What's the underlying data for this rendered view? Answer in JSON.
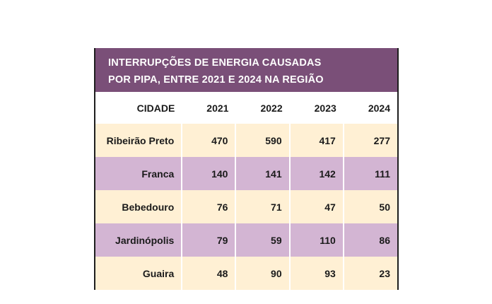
{
  "title": {
    "line1": "INTERRUPÇÕES DE ENERGIA CAUSADAS",
    "line2": "POR PIPA, ENTRE 2021 E 2024 NA REGIÃO"
  },
  "colors": {
    "header_bg": "#7a4f78",
    "row_light": "#fff0d4",
    "row_dark": "#d3b5d3"
  },
  "chart_data": {
    "type": "table",
    "title": "INTERRUPÇÕES DE ENERGIA CAUSADAS POR PIPA, ENTRE 2021 E 2024 NA REGIÃO",
    "columns": [
      "CIDADE",
      "2021",
      "2022",
      "2023",
      "2024"
    ],
    "rows": [
      [
        "Ribeirão Preto",
        "470",
        "590",
        "417",
        "277"
      ],
      [
        "Franca",
        "140",
        "141",
        "142",
        "111"
      ],
      [
        "Bebedouro",
        "76",
        "71",
        "47",
        "50"
      ],
      [
        "Jardinópolis",
        "79",
        "59",
        "110",
        "86"
      ],
      [
        "Guaira",
        "48",
        "90",
        "93",
        "23"
      ]
    ]
  }
}
